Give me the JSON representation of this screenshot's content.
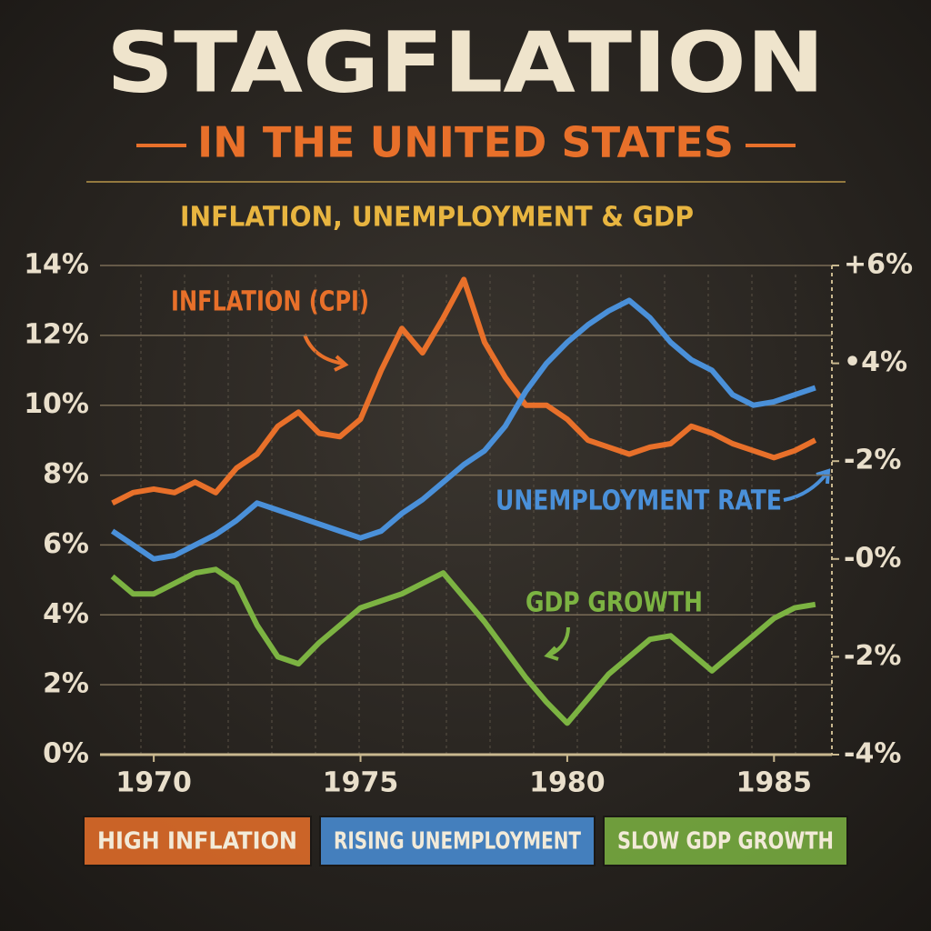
{
  "chart_data": {
    "type": "line",
    "title": "STAGFLATION",
    "subtitle": "IN THE UNITED STATES",
    "chart_subtitle": "INFLATION, UNEMPLOYMENT & GDP",
    "x": [
      1969,
      1969.5,
      1970,
      1970.5,
      1971,
      1971.5,
      1972,
      1972.5,
      1973,
      1973.5,
      1974,
      1974.5,
      1975,
      1975.5,
      1976,
      1976.5,
      1977,
      1977.5,
      1978,
      1978.5,
      1979,
      1979.5,
      1980,
      1980.5,
      1981,
      1981.5,
      1982,
      1982.5,
      1983,
      1983.5,
      1984,
      1984.5,
      1985,
      1985.5,
      1986
    ],
    "xlim": [
      1968.7,
      1986.4
    ],
    "xticks": [
      1970,
      1975,
      1980,
      1985
    ],
    "ylim": [
      0,
      14
    ],
    "yticks": [
      {
        "value": 0,
        "label": "0%"
      },
      {
        "value": 2,
        "label": "2%"
      },
      {
        "value": 4,
        "label": "4%"
      },
      {
        "value": 6,
        "label": "6%"
      },
      {
        "value": 8,
        "label": "8%"
      },
      {
        "value": 10,
        "label": "10%"
      },
      {
        "value": 12,
        "label": "12%"
      },
      {
        "value": 14,
        "label": "14%"
      }
    ],
    "y2lim": [
      -4,
      6
    ],
    "y2ticks": [
      {
        "value": -4,
        "label": "-4%"
      },
      {
        "value": -2,
        "label": "-2%"
      },
      {
        "value": 0,
        "label": "-0%"
      },
      {
        "value": 2,
        "label": "-2%"
      },
      {
        "value": 4,
        "label": "•4%"
      },
      {
        "value": 6,
        "label": "+6%"
      }
    ],
    "grid": true,
    "series": [
      {
        "name": "INFLATION (CPI)",
        "color": "#e8702a",
        "values": [
          7.2,
          7.5,
          7.6,
          7.5,
          7.8,
          7.5,
          8.2,
          8.6,
          9.4,
          9.8,
          9.2,
          9.1,
          9.6,
          11.0,
          12.2,
          11.5,
          12.5,
          13.6,
          11.8,
          10.8,
          10.0,
          10.0,
          9.6,
          9.0,
          8.8,
          8.6,
          8.8,
          8.9,
          9.4,
          9.2,
          8.9,
          8.7,
          8.5,
          8.7,
          9.0
        ]
      },
      {
        "name": "UNEMPLOYMENT RATE",
        "color": "#4a90d9",
        "values": [
          6.4,
          6.0,
          5.6,
          5.7,
          6.0,
          6.3,
          6.7,
          7.2,
          7.0,
          6.8,
          6.6,
          6.4,
          6.2,
          6.4,
          6.9,
          7.3,
          7.8,
          8.3,
          8.7,
          9.4,
          10.4,
          11.2,
          11.8,
          12.3,
          12.7,
          13.0,
          12.5,
          11.8,
          11.3,
          11.0,
          10.3,
          10.0,
          10.1,
          10.3,
          10.5
        ]
      },
      {
        "name": "GDP GROWTH",
        "color": "#7cb342",
        "values": [
          5.1,
          4.6,
          4.6,
          4.9,
          5.2,
          5.3,
          4.9,
          3.7,
          2.8,
          2.6,
          3.2,
          3.7,
          4.2,
          4.4,
          4.6,
          4.9,
          5.2,
          4.5,
          3.8,
          3.0,
          2.2,
          1.5,
          0.9,
          1.6,
          2.3,
          2.8,
          3.3,
          3.4,
          2.9,
          2.4,
          2.9,
          3.4,
          3.9,
          4.2,
          4.3
        ]
      }
    ],
    "badges": [
      "HIGH INFLATION",
      "RISING UNEMPLOYMENT",
      "SLOW GDP GROWTH"
    ]
  }
}
